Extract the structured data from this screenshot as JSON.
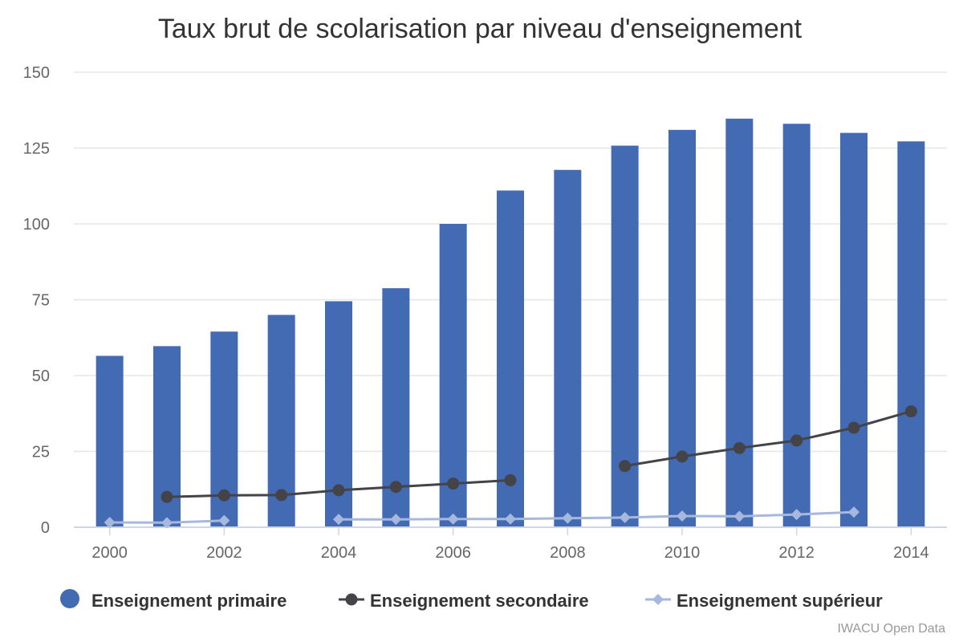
{
  "chart_data": {
    "type": "bar",
    "title": "Taux brut de scolarisation par niveau d'enseignement",
    "xlabel": "",
    "ylabel": "",
    "x": [
      2000,
      2001,
      2002,
      2003,
      2004,
      2005,
      2006,
      2007,
      2008,
      2009,
      2010,
      2011,
      2012,
      2013,
      2014
    ],
    "x_tick_labels": [
      "2000",
      "2002",
      "2004",
      "2006",
      "2008",
      "2010",
      "2012",
      "2014"
    ],
    "ylim": [
      0,
      150
    ],
    "y_ticks": [
      0,
      25,
      50,
      75,
      100,
      125,
      150
    ],
    "grid": true,
    "legend_position": "bottom",
    "credit": "IWACU Open Data",
    "series": [
      {
        "name": "Enseignement primaire",
        "type": "bar",
        "color": "#436BB3",
        "values": [
          56.5,
          59.7,
          64.5,
          70,
          74.5,
          78.8,
          100,
          111,
          117.8,
          125.8,
          131,
          134.7,
          133,
          130,
          127.2
        ]
      },
      {
        "name": "Enseignement secondaire",
        "type": "line",
        "marker": "circle",
        "color": "#434348",
        "values": [
          null,
          10,
          10.5,
          10.6,
          12.2,
          13.3,
          14.4,
          15.5,
          null,
          20.2,
          23.3,
          26.1,
          28.6,
          32.8,
          38.2
        ]
      },
      {
        "name": "Enseignement supérieur",
        "type": "line",
        "marker": "diamond",
        "color": "#A6B8DE",
        "values": [
          1.6,
          1.5,
          2.2,
          null,
          2.6,
          2.6,
          2.7,
          2.7,
          3.0,
          3.2,
          3.7,
          3.6,
          4.2,
          5.0,
          null
        ]
      }
    ]
  }
}
